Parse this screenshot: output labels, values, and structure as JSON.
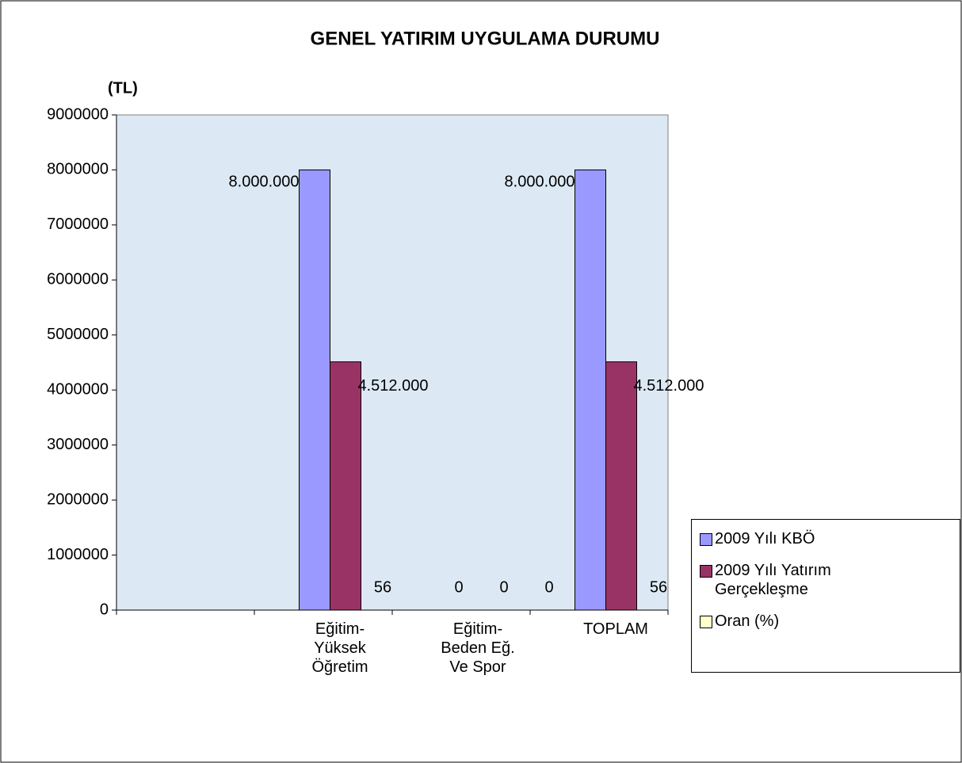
{
  "chart_data": {
    "type": "bar",
    "title": "GENEL YATIRIM UYGULAMA DURUMU",
    "y_label": "(TL)",
    "categories": [
      null,
      "Eğitim-Yüksek Öğretim",
      "Eğitim-Beden Eğ. Ve Spor",
      "TOPLAM"
    ],
    "series": [
      {
        "name": "2009 Yılı KBÖ",
        "color": "#9999ff",
        "values": [
          null,
          8000000,
          0,
          8000000
        ],
        "value_labels": [
          null,
          "8.000.000",
          "0",
          "8.000.000"
        ]
      },
      {
        "name": "2009 Yılı Yatırım Gerçekleşme",
        "color": "#993366",
        "values": [
          null,
          4512000,
          0,
          4512000
        ],
        "value_labels": [
          null,
          "4.512.000",
          "0",
          "4.512.000"
        ]
      },
      {
        "name": "Oran (%)",
        "color": "#ffffcc",
        "values": [
          null,
          56,
          0,
          56
        ]
      }
    ],
    "ylim": [
      0,
      9000000
    ],
    "yticks": [
      0,
      1000000,
      2000000,
      3000000,
      4000000,
      5000000,
      6000000,
      7000000,
      8000000,
      9000000
    ],
    "legend": "right",
    "grid": false
  }
}
